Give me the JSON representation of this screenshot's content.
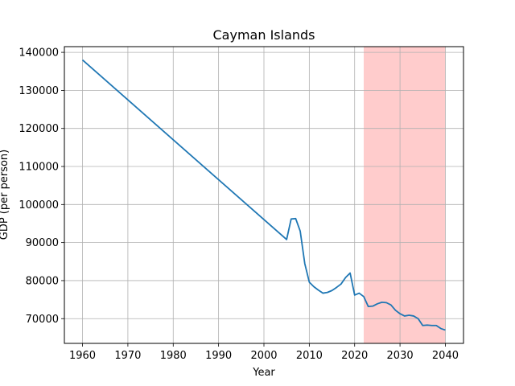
{
  "chart_data": {
    "type": "line",
    "title": "Cayman Islands",
    "xlabel": "Year",
    "ylabel": "GDP (per person)",
    "xlim": [
      1956,
      2044
    ],
    "ylim": [
      63500,
      141500
    ],
    "xticks": [
      1960,
      1970,
      1980,
      1990,
      2000,
      2010,
      2020,
      2030,
      2040
    ],
    "yticks": [
      70000,
      80000,
      90000,
      100000,
      110000,
      120000,
      130000,
      140000
    ],
    "grid": true,
    "line_color": "#1f77b4",
    "shaded_region": {
      "x_start": 2022,
      "x_end": 2040,
      "color": "#ffcccc"
    },
    "series": [
      {
        "x": [
          1960,
          2005,
          2006,
          2007,
          2008,
          2009,
          2010,
          2011,
          2012,
          2013,
          2014,
          2015,
          2016,
          2017,
          2018,
          2019,
          2020,
          2021,
          2022,
          2023,
          2024,
          2025,
          2026,
          2027,
          2028,
          2029,
          2030,
          2031,
          2032,
          2033,
          2034,
          2035,
          2036,
          2037,
          2038,
          2039,
          2040
        ],
        "y": [
          138000,
          90800,
          96200,
          96300,
          93000,
          84500,
          79600,
          78400,
          77500,
          76700,
          76900,
          77400,
          78200,
          79100,
          80800,
          82000,
          76200,
          76700,
          75800,
          73200,
          73300,
          73900,
          74300,
          74200,
          73600,
          72200,
          71300,
          70700,
          70900,
          70700,
          70000,
          68200,
          68300,
          68200,
          68200,
          67400,
          67000
        ]
      }
    ]
  }
}
